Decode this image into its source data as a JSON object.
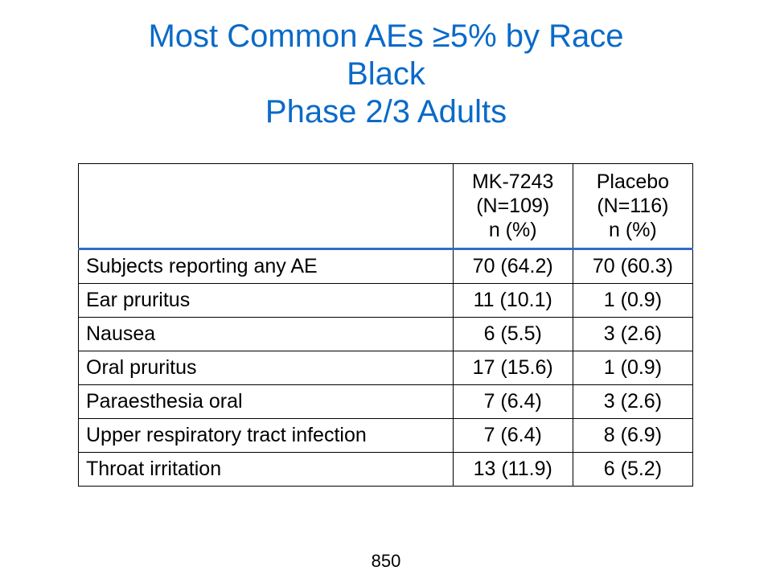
{
  "title": {
    "line1": "Most Common AEs ≥5% by Race",
    "line2": "Black",
    "line3": "Phase 2/3 Adults"
  },
  "table": {
    "columns": [
      {
        "name": "MK-7243",
        "n": "(N=109)",
        "unit": "n (%)"
      },
      {
        "name": "Placebo",
        "n": "(N=116)",
        "unit": "n (%)"
      }
    ],
    "rows": [
      {
        "label": "Subjects reporting any AE",
        "values": [
          "70 (64.2)",
          "70 (60.3)"
        ]
      },
      {
        "label": "Ear pruritus",
        "values": [
          "11 (10.1)",
          "1 (0.9)"
        ]
      },
      {
        "label": "Nausea",
        "values": [
          "6 (5.5)",
          "3 (2.6)"
        ]
      },
      {
        "label": "Oral pruritus",
        "values": [
          "17 (15.6)",
          "1 (0.9)"
        ]
      },
      {
        "label": "Paraesthesia oral",
        "values": [
          "7 (6.4)",
          "3 (2.6)"
        ]
      },
      {
        "label": "Upper respiratory tract infection",
        "values": [
          "7 (6.4)",
          "8 (6.9)"
        ]
      },
      {
        "label": "Throat irritation",
        "values": [
          "13 (11.9)",
          "6 (5.2)"
        ]
      }
    ]
  },
  "page_number": "850",
  "colors": {
    "title": "#0a6ac8",
    "header_rule": "#2f6fc6"
  }
}
